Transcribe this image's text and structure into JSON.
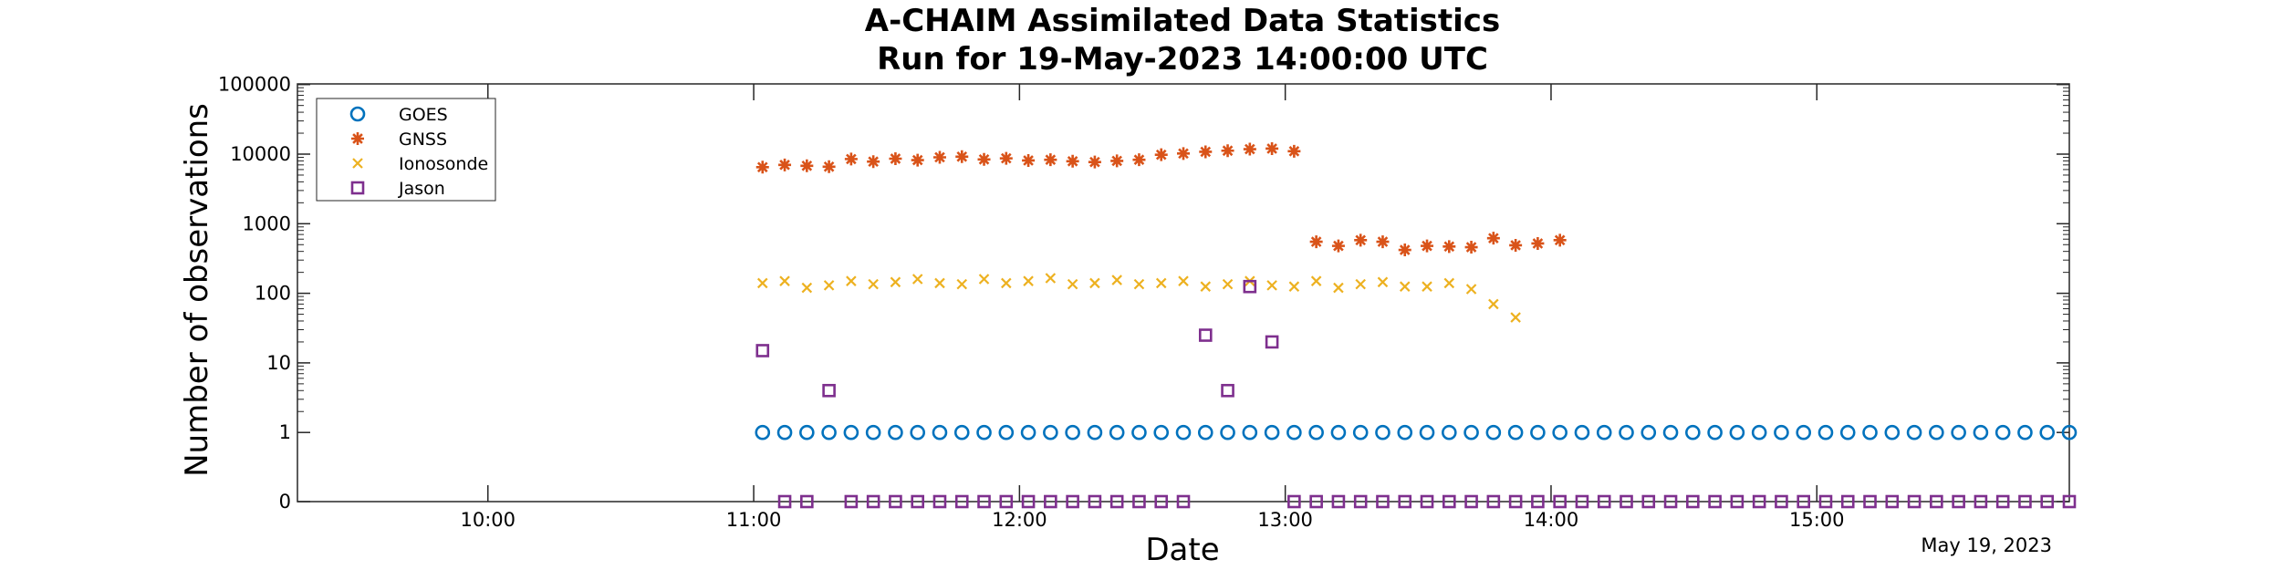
{
  "chart_data": {
    "type": "scatter",
    "title": "A-CHAIM Assimilated Data Statistics",
    "subtitle": "Run for 19-May-2023 14:00:00 UTC",
    "xlabel": "Date",
    "ylabel": "Number of observations",
    "date_stamp": "May 19, 2023",
    "x_unit": "time (UTC, HH:MM) on 19-May-2023",
    "xlim": [
      "09:17",
      "15:57"
    ],
    "ylim": [
      0,
      100000
    ],
    "y_scale": "log, with 0 shown at the bottom of the axis",
    "x_ticks": [
      "10:00",
      "11:00",
      "12:00",
      "13:00",
      "14:00",
      "15:00"
    ],
    "y_ticks": [
      "0",
      "1",
      "10",
      "100",
      "1000",
      "10000",
      "100000"
    ],
    "grid": false,
    "legend_position": "top-left",
    "series": [
      {
        "name": "GOES",
        "color": "#0072BD",
        "marker": "circle",
        "points": [
          [
            "11:02",
            1
          ],
          [
            "11:07",
            1
          ],
          [
            "11:12",
            1
          ],
          [
            "11:17",
            1
          ],
          [
            "11:22",
            1
          ],
          [
            "11:27",
            1
          ],
          [
            "11:32",
            1
          ],
          [
            "11:37",
            1
          ],
          [
            "11:42",
            1
          ],
          [
            "11:47",
            1
          ],
          [
            "11:52",
            1
          ],
          [
            "11:57",
            1
          ],
          [
            "12:02",
            1
          ],
          [
            "12:07",
            1
          ],
          [
            "12:12",
            1
          ],
          [
            "12:17",
            1
          ],
          [
            "12:22",
            1
          ],
          [
            "12:27",
            1
          ],
          [
            "12:32",
            1
          ],
          [
            "12:37",
            1
          ],
          [
            "12:42",
            1
          ],
          [
            "12:47",
            1
          ],
          [
            "12:52",
            1
          ],
          [
            "12:57",
            1
          ],
          [
            "13:02",
            1
          ],
          [
            "13:07",
            1
          ],
          [
            "13:12",
            1
          ],
          [
            "13:17",
            1
          ],
          [
            "13:22",
            1
          ],
          [
            "13:27",
            1
          ],
          [
            "13:32",
            1
          ],
          [
            "13:37",
            1
          ],
          [
            "13:42",
            1
          ],
          [
            "13:47",
            1
          ],
          [
            "13:52",
            1
          ],
          [
            "13:57",
            1
          ],
          [
            "14:02",
            1
          ],
          [
            "14:07",
            1
          ],
          [
            "14:12",
            1
          ],
          [
            "14:17",
            1
          ],
          [
            "14:22",
            1
          ],
          [
            "14:27",
            1
          ],
          [
            "14:32",
            1
          ],
          [
            "14:37",
            1
          ],
          [
            "14:42",
            1
          ],
          [
            "14:47",
            1
          ],
          [
            "14:52",
            1
          ],
          [
            "14:57",
            1
          ],
          [
            "15:02",
            1
          ],
          [
            "15:07",
            1
          ],
          [
            "15:12",
            1
          ],
          [
            "15:17",
            1
          ],
          [
            "15:22",
            1
          ],
          [
            "15:27",
            1
          ],
          [
            "15:32",
            1
          ],
          [
            "15:37",
            1
          ],
          [
            "15:42",
            1
          ],
          [
            "15:47",
            1
          ],
          [
            "15:52",
            1
          ],
          [
            "15:57",
            1
          ]
        ]
      },
      {
        "name": "GNSS",
        "color": "#D95319",
        "marker": "asterisk",
        "points": [
          [
            "11:02",
            6500
          ],
          [
            "11:07",
            7000
          ],
          [
            "11:12",
            6800
          ],
          [
            "11:17",
            6600
          ],
          [
            "11:22",
            8500
          ],
          [
            "11:27",
            7800
          ],
          [
            "11:32",
            8600
          ],
          [
            "11:37",
            8200
          ],
          [
            "11:42",
            9000
          ],
          [
            "11:47",
            9200
          ],
          [
            "11:52",
            8400
          ],
          [
            "11:57",
            8700
          ],
          [
            "12:02",
            8100
          ],
          [
            "12:07",
            8300
          ],
          [
            "12:12",
            7900
          ],
          [
            "12:17",
            7700
          ],
          [
            "12:22",
            8000
          ],
          [
            "12:27",
            8300
          ],
          [
            "12:32",
            9800
          ],
          [
            "12:37",
            10200
          ],
          [
            "12:42",
            10800
          ],
          [
            "12:47",
            11200
          ],
          [
            "12:52",
            11800
          ],
          [
            "12:57",
            12000
          ],
          [
            "13:02",
            11000
          ],
          [
            "13:07",
            550
          ],
          [
            "13:12",
            480
          ],
          [
            "13:17",
            580
          ],
          [
            "13:22",
            550
          ],
          [
            "13:27",
            420
          ],
          [
            "13:32",
            480
          ],
          [
            "13:37",
            470
          ],
          [
            "13:42",
            460
          ],
          [
            "13:47",
            620
          ],
          [
            "13:52",
            490
          ],
          [
            "13:57",
            520
          ],
          [
            "14:02",
            580
          ]
        ]
      },
      {
        "name": "Ionosonde",
        "color": "#EDB120",
        "marker": "x",
        "points": [
          [
            "11:02",
            140
          ],
          [
            "11:07",
            150
          ],
          [
            "11:12",
            120
          ],
          [
            "11:17",
            130
          ],
          [
            "11:22",
            150
          ],
          [
            "11:27",
            135
          ],
          [
            "11:32",
            145
          ],
          [
            "11:37",
            160
          ],
          [
            "11:42",
            140
          ],
          [
            "11:47",
            135
          ],
          [
            "11:52",
            160
          ],
          [
            "11:57",
            140
          ],
          [
            "12:02",
            150
          ],
          [
            "12:07",
            165
          ],
          [
            "12:12",
            135
          ],
          [
            "12:17",
            140
          ],
          [
            "12:22",
            155
          ],
          [
            "12:27",
            135
          ],
          [
            "12:32",
            140
          ],
          [
            "12:37",
            150
          ],
          [
            "12:42",
            125
          ],
          [
            "12:47",
            135
          ],
          [
            "12:52",
            150
          ],
          [
            "12:57",
            130
          ],
          [
            "13:02",
            125
          ],
          [
            "13:07",
            150
          ],
          [
            "13:12",
            120
          ],
          [
            "13:17",
            135
          ],
          [
            "13:22",
            145
          ],
          [
            "13:27",
            125
          ],
          [
            "13:32",
            125
          ],
          [
            "13:37",
            140
          ],
          [
            "13:42",
            115
          ],
          [
            "13:47",
            70
          ],
          [
            "13:52",
            45
          ]
        ]
      },
      {
        "name": "Jason",
        "color": "#7E2F8E",
        "marker": "square",
        "points": [
          [
            "11:02",
            15
          ],
          [
            "11:07",
            0
          ],
          [
            "11:12",
            0
          ],
          [
            "11:17",
            4
          ],
          [
            "11:22",
            0
          ],
          [
            "11:27",
            0
          ],
          [
            "11:32",
            0
          ],
          [
            "11:37",
            0
          ],
          [
            "11:42",
            0
          ],
          [
            "11:47",
            0
          ],
          [
            "11:52",
            0
          ],
          [
            "11:57",
            0
          ],
          [
            "12:02",
            0
          ],
          [
            "12:07",
            0
          ],
          [
            "12:12",
            0
          ],
          [
            "12:17",
            0
          ],
          [
            "12:22",
            0
          ],
          [
            "12:27",
            0
          ],
          [
            "12:32",
            0
          ],
          [
            "12:37",
            0
          ],
          [
            "12:42",
            25
          ],
          [
            "12:47",
            4
          ],
          [
            "12:52",
            125
          ],
          [
            "12:57",
            20
          ],
          [
            "13:02",
            0
          ],
          [
            "13:07",
            0
          ],
          [
            "13:12",
            0
          ],
          [
            "13:17",
            0
          ],
          [
            "13:22",
            0
          ],
          [
            "13:27",
            0
          ],
          [
            "13:32",
            0
          ],
          [
            "13:37",
            0
          ],
          [
            "13:42",
            0
          ],
          [
            "13:47",
            0
          ],
          [
            "13:52",
            0
          ],
          [
            "13:57",
            0
          ],
          [
            "14:02",
            0
          ],
          [
            "14:07",
            0
          ],
          [
            "14:12",
            0
          ],
          [
            "14:17",
            0
          ],
          [
            "14:22",
            0
          ],
          [
            "14:27",
            0
          ],
          [
            "14:32",
            0
          ],
          [
            "14:37",
            0
          ],
          [
            "14:42",
            0
          ],
          [
            "14:47",
            0
          ],
          [
            "14:52",
            0
          ],
          [
            "14:57",
            0
          ],
          [
            "15:02",
            0
          ],
          [
            "15:07",
            0
          ],
          [
            "15:12",
            0
          ],
          [
            "15:17",
            0
          ],
          [
            "15:22",
            0
          ],
          [
            "15:27",
            0
          ],
          [
            "15:32",
            0
          ],
          [
            "15:37",
            0
          ],
          [
            "15:42",
            0
          ],
          [
            "15:47",
            0
          ],
          [
            "15:52",
            0
          ],
          [
            "15:57",
            0
          ]
        ]
      }
    ]
  }
}
